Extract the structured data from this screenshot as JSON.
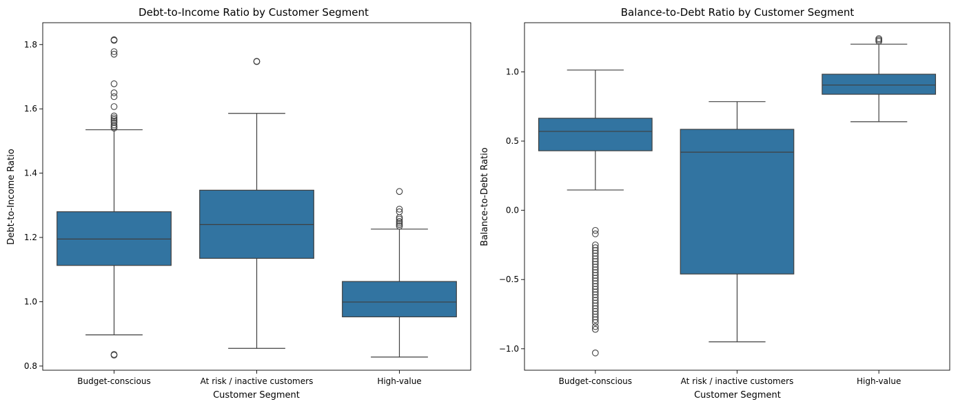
{
  "chart_data": [
    {
      "type": "box",
      "title": "Debt-to-Income Ratio by Customer Segment",
      "xlabel": "Customer Segment",
      "ylabel": "Debt-to-Income Ratio",
      "categories": [
        "Budget-conscious",
        "At risk / inactive customers",
        "High-value"
      ],
      "ylim": [
        0.787,
        1.868
      ],
      "yticks": [
        0.8,
        1.0,
        1.2,
        1.4,
        1.6,
        1.8
      ],
      "ytick_labels": [
        "0.8",
        "1.0",
        "1.2",
        "1.4",
        "1.6",
        "1.8"
      ],
      "box_color": "#3274a1",
      "boxes": [
        {
          "category": "Budget-conscious",
          "whisker_low": 0.897,
          "q1": 1.113,
          "median": 1.195,
          "q3": 1.28,
          "whisker_high": 1.535,
          "outliers": [
            1.815,
            1.813,
            1.778,
            1.77,
            1.678,
            1.65,
            1.638,
            1.607,
            1.578,
            1.572,
            1.567,
            1.562,
            1.557,
            1.55,
            1.545,
            1.54,
            0.836,
            0.834
          ]
        },
        {
          "category": "At risk / inactive customers",
          "whisker_low": 0.855,
          "q1": 1.135,
          "median": 1.24,
          "q3": 1.347,
          "whisker_high": 1.586,
          "outliers": [
            1.748,
            1.747
          ]
        },
        {
          "category": "High-value",
          "whisker_low": 0.828,
          "q1": 0.953,
          "median": 0.999,
          "q3": 1.063,
          "whisker_high": 1.226,
          "outliers": [
            1.343,
            1.288,
            1.28,
            1.262,
            1.257,
            1.25,
            1.245,
            1.24,
            1.235
          ]
        }
      ]
    },
    {
      "type": "box",
      "title": "Balance-to-Debt Ratio by Customer Segment",
      "xlabel": "Customer Segment",
      "ylabel": "Balance-to-Debt Ratio",
      "categories": [
        "Budget-conscious",
        "At risk / inactive customers",
        "High-value"
      ],
      "ylim": [
        -1.155,
        1.355
      ],
      "yticks": [
        -1.0,
        -0.5,
        0.0,
        0.5,
        1.0
      ],
      "ytick_labels": [
        "−1.0",
        "−0.5",
        "0.0",
        "0.5",
        "1.0"
      ],
      "box_color": "#3274a1",
      "boxes": [
        {
          "category": "Budget-conscious",
          "whisker_low": 0.147,
          "q1": 0.43,
          "median": 0.57,
          "q3": 0.665,
          "whisker_high": 1.013,
          "outliers": [
            -0.145,
            -0.17,
            -0.25,
            -0.27,
            -0.29,
            -0.31,
            -0.33,
            -0.35,
            -0.37,
            -0.39,
            -0.41,
            -0.43,
            -0.45,
            -0.47,
            -0.49,
            -0.51,
            -0.53,
            -0.55,
            -0.57,
            -0.59,
            -0.61,
            -0.63,
            -0.65,
            -0.67,
            -0.69,
            -0.71,
            -0.73,
            -0.75,
            -0.77,
            -0.79,
            -0.81,
            -0.84,
            -0.86,
            -1.03
          ]
        },
        {
          "category": "At risk / inactive customers",
          "whisker_low": -0.95,
          "q1": -0.46,
          "median": 0.42,
          "q3": 0.585,
          "whisker_high": 0.785,
          "outliers": []
        },
        {
          "category": "High-value",
          "whisker_low": 0.64,
          "q1": 0.838,
          "median": 0.905,
          "q3": 0.983,
          "whisker_high": 1.2,
          "outliers": [
            1.24,
            1.23,
            1.22
          ]
        }
      ]
    }
  ]
}
